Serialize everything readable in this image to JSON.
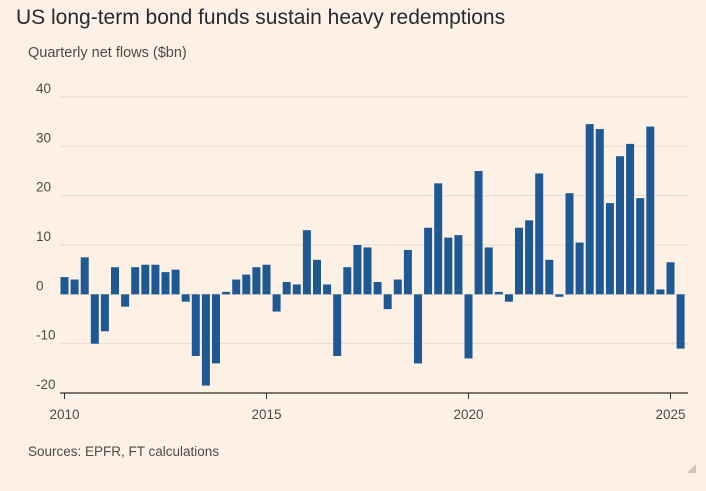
{
  "chart_data": {
    "type": "bar",
    "title": "US long-term bond funds sustain heavy redemptions",
    "subtitle": "Quarterly net flows ($bn)",
    "xlabel": "",
    "ylabel": "",
    "ylim": [
      -20,
      40
    ],
    "yticks": [
      40,
      30,
      20,
      10,
      0,
      -10,
      -20
    ],
    "yticklabels": [
      "40",
      "30",
      "20",
      "10",
      "0",
      "-10",
      "-20"
    ],
    "xticks": [
      2010,
      2015,
      2020,
      2025
    ],
    "xticklabels": [
      "2010",
      "2015",
      "2020",
      "2025"
    ],
    "x_start": 2010.0,
    "x_step": 0.25,
    "grid": true,
    "bar_color": "#1f5994",
    "series": [
      {
        "name": "Quarterly net flows",
        "values": [
          3.5,
          3.0,
          7.5,
          -10.0,
          -7.5,
          5.5,
          -2.5,
          5.5,
          6.0,
          6.0,
          4.5,
          5.0,
          -1.5,
          -12.5,
          -18.5,
          -14.0,
          0.5,
          3.0,
          4.0,
          5.5,
          6.0,
          -3.5,
          2.5,
          2.0,
          13.0,
          7.0,
          2.0,
          -12.5,
          5.5,
          10.0,
          9.5,
          2.5,
          -3.0,
          3.0,
          9.0,
          -14.0,
          13.5,
          22.5,
          11.5,
          12.0,
          -13.0,
          25.0,
          9.5,
          0.5,
          -1.5,
          13.5,
          15.0,
          24.5,
          7.0,
          -0.5,
          20.5,
          10.5,
          34.5,
          33.5,
          18.5,
          28.0,
          30.5,
          19.5,
          34.0,
          1.0,
          6.5,
          -11.0
        ]
      }
    ]
  },
  "source": "Sources: EPFR, FT calculations",
  "colors": {
    "background": "#fdf1e6",
    "bar": "#1f5994",
    "grid": "#e8dcd1",
    "axis": "#33302e"
  }
}
